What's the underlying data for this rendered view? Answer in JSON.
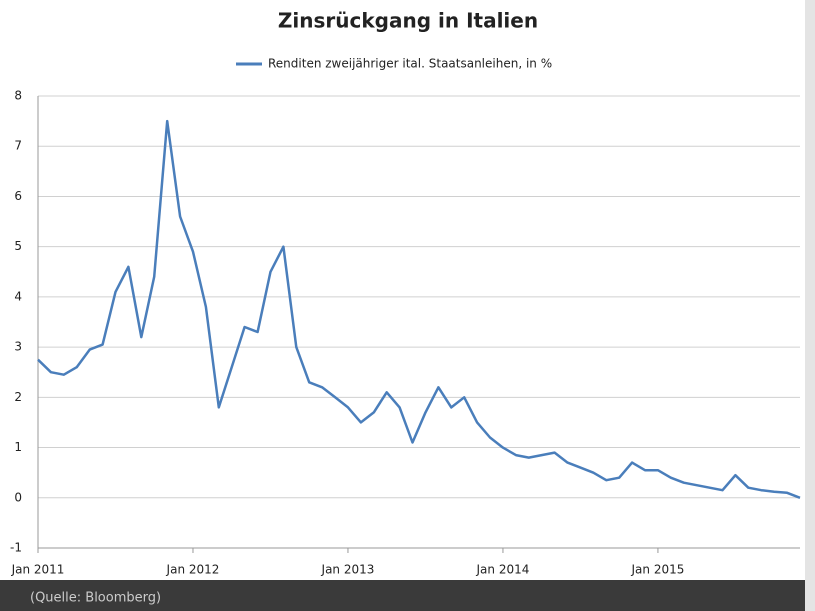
{
  "chart_data": {
    "type": "line",
    "title": "Zinsrückgang in Italien",
    "categories": [
      "Jan 2011",
      null,
      null,
      null,
      null,
      null,
      null,
      null,
      null,
      null,
      null,
      null,
      "Jan 2012",
      null,
      null,
      null,
      null,
      null,
      null,
      null,
      null,
      null,
      null,
      null,
      "Jan 2013",
      null,
      null,
      null,
      null,
      null,
      null,
      null,
      null,
      null,
      null,
      null,
      "Jan 2014",
      null,
      null,
      null,
      null,
      null,
      null,
      null,
      null,
      null,
      null,
      null,
      "Jan 2015",
      null,
      null,
      null,
      null,
      null,
      null,
      null,
      null,
      null,
      null,
      null
    ],
    "series": [
      {
        "name": "Renditen zweijähriger ital. Staatsanleihen, in %",
        "color": "#4a7ebb",
        "values": [
          2.75,
          2.5,
          2.45,
          2.6,
          2.95,
          3.05,
          4.1,
          4.6,
          3.2,
          4.4,
          7.5,
          5.6,
          4.9,
          3.8,
          1.8,
          2.6,
          3.4,
          3.3,
          4.5,
          5.0,
          3.0,
          2.3,
          2.2,
          2.0,
          1.8,
          1.5,
          1.7,
          2.1,
          1.8,
          1.1,
          1.7,
          2.2,
          1.8,
          2.0,
          1.5,
          1.2,
          1.0,
          0.85,
          0.8,
          0.85,
          0.9,
          0.7,
          0.6,
          0.5,
          0.35,
          0.4,
          0.7,
          0.55,
          0.55,
          0.4,
          0.3,
          0.25,
          0.2,
          0.15,
          0.45,
          0.2,
          0.15,
          0.12,
          0.1,
          0.0
        ]
      }
    ],
    "ylim": [
      -1,
      8
    ],
    "yticks": [
      -1,
      0,
      1,
      2,
      3,
      4,
      5,
      6,
      7,
      8
    ],
    "grid": true,
    "legend": "top",
    "source": "(Quelle: Bloomberg)"
  }
}
